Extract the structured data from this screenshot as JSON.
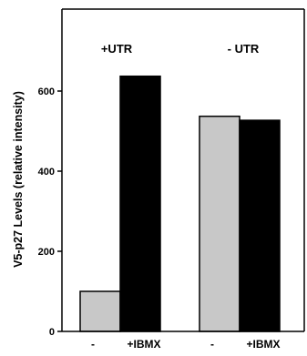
{
  "chart_data": {
    "type": "bar",
    "ylabel": "V5-p27 Levels (relative intensity)",
    "ylim": [
      0,
      760
    ],
    "yticks": [
      0,
      200,
      400,
      600
    ],
    "groups": [
      {
        "label": "+UTR",
        "bars": [
          {
            "label": "-",
            "value": 100,
            "color": "#c8c8c8"
          },
          {
            "label": "+IBMX",
            "value": 637,
            "color": "#000000"
          }
        ]
      },
      {
        "label": "- UTR",
        "bars": [
          {
            "label": "-",
            "value": 537,
            "color": "#c8c8c8"
          },
          {
            "label": "+IBMX",
            "value": 527,
            "color": "#000000"
          }
        ]
      }
    ]
  }
}
